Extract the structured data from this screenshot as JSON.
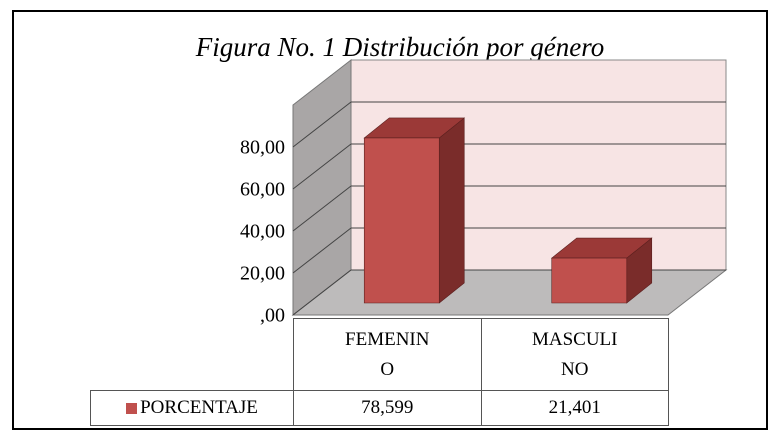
{
  "chart_data": {
    "type": "bar3d",
    "title": "Figura No. 1 Distribución por género",
    "categories": [
      "FEMENINO",
      "MASCULINO"
    ],
    "series": [
      {
        "name": "PORCENTAJE",
        "color": "#c0504d",
        "values": [
          78.599,
          21.401
        ],
        "value_labels": [
          "78,599",
          "21,401"
        ]
      }
    ],
    "ylim": [
      0,
      100
    ],
    "yticks": [
      {
        "value": 0,
        "label": ",00"
      },
      {
        "value": 20,
        "label": "20,00"
      },
      {
        "value": 40,
        "label": "40,00"
      },
      {
        "value": 60,
        "label": "60,00"
      },
      {
        "value": 80,
        "label": "80,00"
      }
    ],
    "grid": true
  }
}
